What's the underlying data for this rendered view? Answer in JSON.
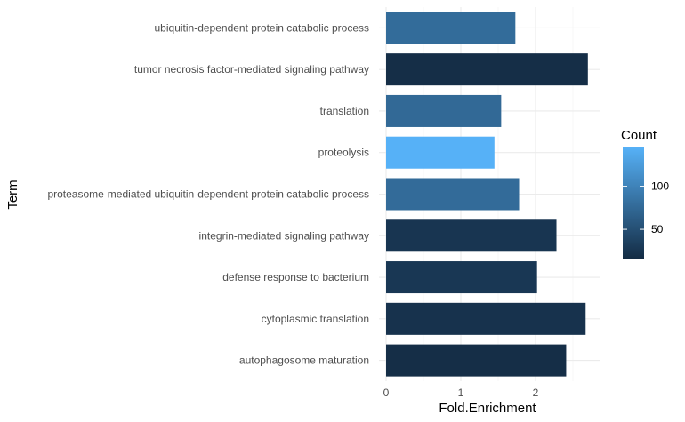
{
  "chart_data": {
    "type": "bar",
    "orientation": "horizontal",
    "xlabel": "Fold.Enrichment",
    "ylabel": "Term",
    "xlim": [
      0,
      2.85
    ],
    "xticks": [
      "0",
      "1",
      "2"
    ],
    "grid": true,
    "legend": {
      "title": "Count",
      "placement": "right",
      "ticks": [
        "50",
        "100"
      ],
      "range": [
        15,
        145
      ],
      "color_low": "#132b43",
      "color_high": "#56b1f7"
    },
    "categories": [
      "ubiquitin-dependent protein catabolic process",
      "tumor necrosis factor-mediated signaling pathway",
      "translation",
      "proteolysis",
      "proteasome-mediated ubiquitin-dependent protein catabolic process",
      "integrin-mediated signaling pathway",
      "defense response to bacterium",
      "cytoplasmic translation",
      "autophagosome maturation"
    ],
    "values": [
      1.73,
      2.7,
      1.54,
      1.45,
      1.78,
      2.28,
      2.02,
      2.67,
      2.41
    ],
    "counts": [
      78,
      18,
      75,
      145,
      77,
      25,
      27,
      22,
      18
    ]
  }
}
